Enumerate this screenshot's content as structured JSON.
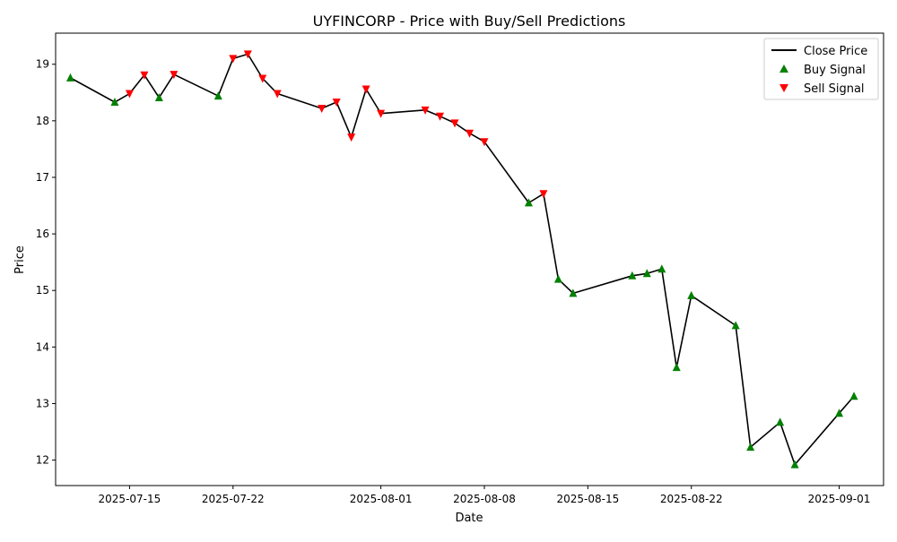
{
  "chart_data": {
    "type": "line",
    "title": "UYFINCORP - Price with Buy/Sell Predictions",
    "xlabel": "Date",
    "ylabel": "Price",
    "xlim": [
      "2025-07-10",
      "2025-09-04"
    ],
    "ylim": [
      11.55,
      19.55
    ],
    "x_ticks": [
      "2025-07-15",
      "2025-07-22",
      "2025-08-01",
      "2025-08-08",
      "2025-08-15",
      "2025-08-22",
      "2025-09-01"
    ],
    "y_ticks": [
      "12",
      "13",
      "14",
      "15",
      "16",
      "17",
      "18",
      "19"
    ],
    "grid": false,
    "legend_position": "top-right",
    "legend": [
      {
        "label": "Close Price",
        "kind": "line",
        "color": "#000000"
      },
      {
        "label": "Buy Signal",
        "kind": "marker-up",
        "color": "#008000"
      },
      {
        "label": "Sell Signal",
        "kind": "marker-down",
        "color": "#ff0000"
      }
    ],
    "series": [
      {
        "name": "Close Price",
        "color": "#000000",
        "points": [
          [
            "2025-07-11",
            18.76,
            "buy"
          ],
          [
            "2025-07-14",
            18.33,
            "buy"
          ],
          [
            "2025-07-15",
            18.48,
            "sell"
          ],
          [
            "2025-07-16",
            18.81,
            "sell"
          ],
          [
            "2025-07-17",
            18.41,
            "buy"
          ],
          [
            "2025-07-18",
            18.82,
            "sell"
          ],
          [
            "2025-07-21",
            18.44,
            "buy"
          ],
          [
            "2025-07-22",
            19.1,
            "sell"
          ],
          [
            "2025-07-23",
            19.18,
            "sell"
          ],
          [
            "2025-07-24",
            18.75,
            "sell"
          ],
          [
            "2025-07-25",
            18.48,
            "sell"
          ],
          [
            "2025-07-28",
            18.22,
            "sell"
          ],
          [
            "2025-07-29",
            18.33,
            "sell"
          ],
          [
            "2025-07-30",
            17.71,
            "sell"
          ],
          [
            "2025-07-31",
            18.56,
            "sell"
          ],
          [
            "2025-08-01",
            18.13,
            "sell"
          ],
          [
            "2025-08-04",
            18.19,
            "sell"
          ],
          [
            "2025-08-05",
            18.08,
            "sell"
          ],
          [
            "2025-08-06",
            17.96,
            "sell"
          ],
          [
            "2025-08-07",
            17.78,
            "sell"
          ],
          [
            "2025-08-08",
            17.63,
            "sell"
          ],
          [
            "2025-08-11",
            16.55,
            "buy"
          ],
          [
            "2025-08-12",
            16.71,
            "sell"
          ],
          [
            "2025-08-13",
            15.2,
            "buy"
          ],
          [
            "2025-08-14",
            14.95,
            "buy"
          ],
          [
            "2025-08-18",
            15.26,
            "buy"
          ],
          [
            "2025-08-19",
            15.3,
            "buy"
          ],
          [
            "2025-08-20",
            15.38,
            "buy"
          ],
          [
            "2025-08-21",
            13.64,
            "buy"
          ],
          [
            "2025-08-22",
            14.91,
            "buy"
          ],
          [
            "2025-08-25",
            14.38,
            "buy"
          ],
          [
            "2025-08-26",
            12.23,
            "buy"
          ],
          [
            "2025-08-28",
            12.67,
            "buy"
          ],
          [
            "2025-08-29",
            11.92,
            "buy"
          ],
          [
            "2025-09-01",
            12.83,
            "buy"
          ],
          [
            "2025-09-02",
            13.13,
            "buy"
          ]
        ]
      }
    ]
  }
}
